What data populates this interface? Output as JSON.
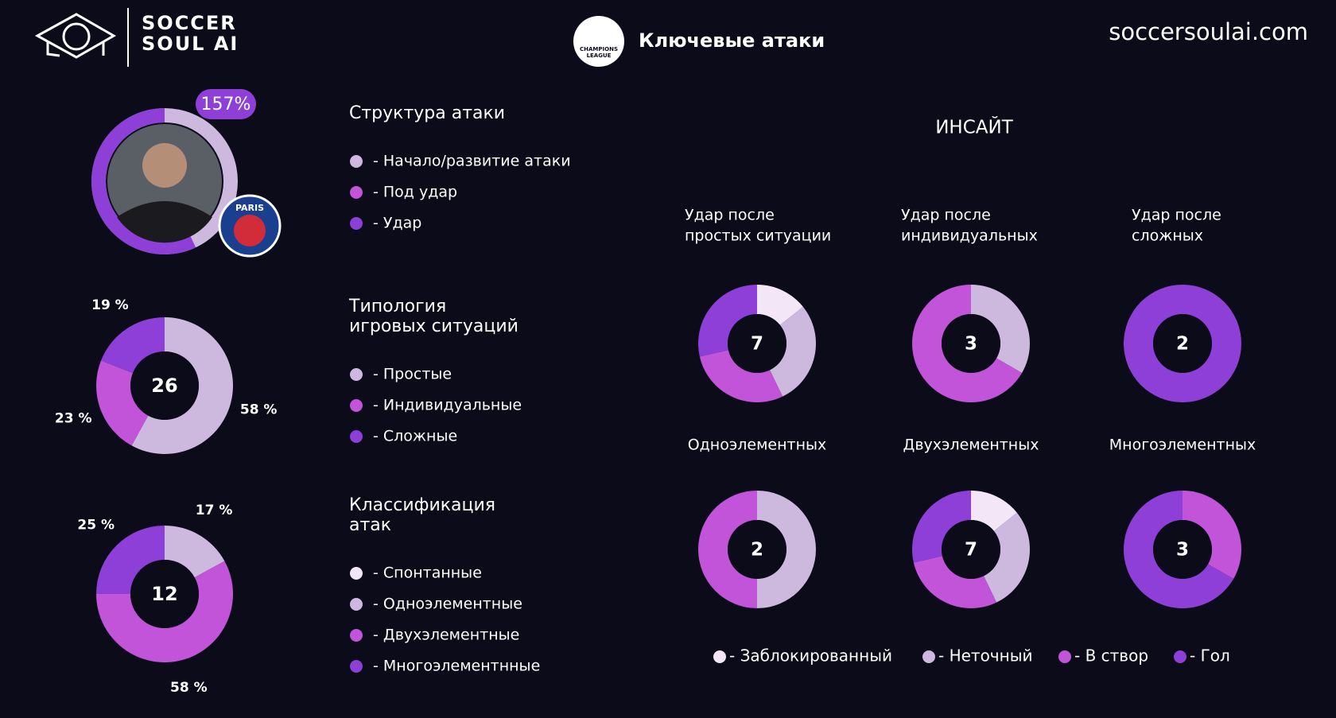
{
  "header": {
    "brand": [
      "SOCCER",
      "SOUL AI"
    ],
    "title": "Ключевые атаки",
    "site": "soccersoulai.com",
    "ucl": [
      "CHAMPIONS",
      "LEAGUE"
    ],
    "club": "PARIS"
  },
  "insight": "ИНСАЙТ",
  "shot_legend": {
    "labels": [
      "- Заблокированный",
      "- Неточный",
      "- В створ",
      "- Гол"
    ],
    "colors": [
      "#f3e6f7",
      "#cdb8de",
      "#c154d9",
      "#8e3fd8"
    ]
  },
  "chart_data": [
    {
      "type": "ring",
      "legend_title": [
        "Структура атаки"
      ],
      "value": 157,
      "value_label": "157%",
      "color": "#8e3fd8",
      "track_color": "#cdb8de",
      "legend": [
        "- Начало/развитие атаки",
        "- Под удар",
        "- Удар"
      ],
      "legend_colors": [
        "#cdb8de",
        "#c154d9",
        "#8e3fd8"
      ]
    },
    {
      "type": "donut",
      "legend_title": [
        "Типология",
        "игровых ситуаций"
      ],
      "total": 26,
      "categories": [
        "- Простые",
        "- Индивидуальные",
        "- Сложные"
      ],
      "values": [
        58,
        23,
        19
      ],
      "value_labels": [
        "58 %",
        "23 %",
        "19 %"
      ],
      "colors": [
        "#cdb8de",
        "#c154d9",
        "#8e3fd8"
      ]
    },
    {
      "type": "donut",
      "legend_title": [
        "Классификация",
        "атак"
      ],
      "total": 12,
      "categories": [
        "- Спонтанные",
        "- Одноэлементные",
        "- Двухэлементные",
        "- Многоэлементнные"
      ],
      "values": [
        0,
        17,
        58,
        25
      ],
      "value_labels": [
        null,
        "17 %",
        "58 %",
        "25 %"
      ],
      "colors": [
        "#f3e6f7",
        "#cdb8de",
        "#c154d9",
        "#8e3fd8"
      ]
    },
    {
      "type": "shots",
      "title": [
        "Удар после",
        "простых ситуации"
      ],
      "total": 7,
      "values": [
        1,
        2,
        2,
        2
      ]
    },
    {
      "type": "shots",
      "title": [
        "Удар после",
        "индивидуальных"
      ],
      "total": 3,
      "values": [
        0,
        1,
        2,
        0
      ]
    },
    {
      "type": "shots",
      "title": [
        "Удар после",
        "сложных"
      ],
      "total": 2,
      "values": [
        0,
        0,
        0,
        2
      ]
    },
    {
      "type": "shots",
      "title": [
        "Одноэлементных"
      ],
      "total": 2,
      "values": [
        0,
        1,
        1,
        0
      ]
    },
    {
      "type": "shots",
      "title": [
        "Двухэлементных"
      ],
      "total": 7,
      "values": [
        1,
        2,
        2,
        2
      ]
    },
    {
      "type": "shots",
      "title": [
        "Многоэлементных"
      ],
      "total": 3,
      "values": [
        0,
        0,
        1,
        2
      ]
    }
  ]
}
